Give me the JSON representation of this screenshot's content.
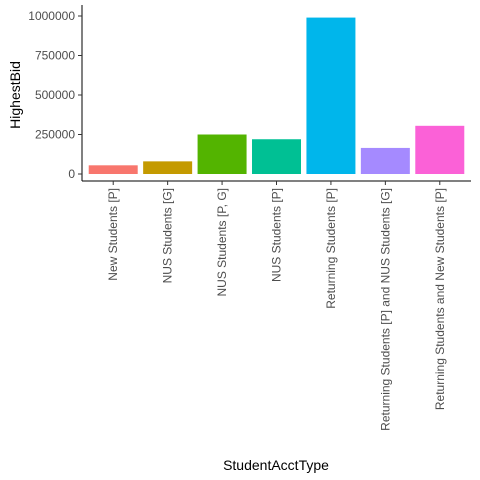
{
  "chart_data": {
    "type": "bar",
    "xlabel": "StudentAcctType",
    "ylabel": "HighestBid",
    "ylim": [
      0,
      1050000
    ],
    "yticks": [
      0,
      250000,
      500000,
      750000,
      1000000
    ],
    "ytick_labels": [
      "0",
      "250000",
      "500000",
      "750000",
      "1000000"
    ],
    "grid": false,
    "legend": "none",
    "categories": [
      "New Students [P]",
      "NUS Students [G]",
      "NUS Students [P, G]",
      "NUS Students [P]",
      "Returning Students [P]",
      "Returning Students [P] and NUS Students [G]",
      "Returning Students and New Students [P]"
    ],
    "values": [
      55000,
      80000,
      250000,
      220000,
      990000,
      165000,
      305000
    ],
    "colors": [
      "#F8766D",
      "#C49A00",
      "#53B400",
      "#00C094",
      "#00B6EB",
      "#A58AFF",
      "#FB61D7"
    ]
  }
}
